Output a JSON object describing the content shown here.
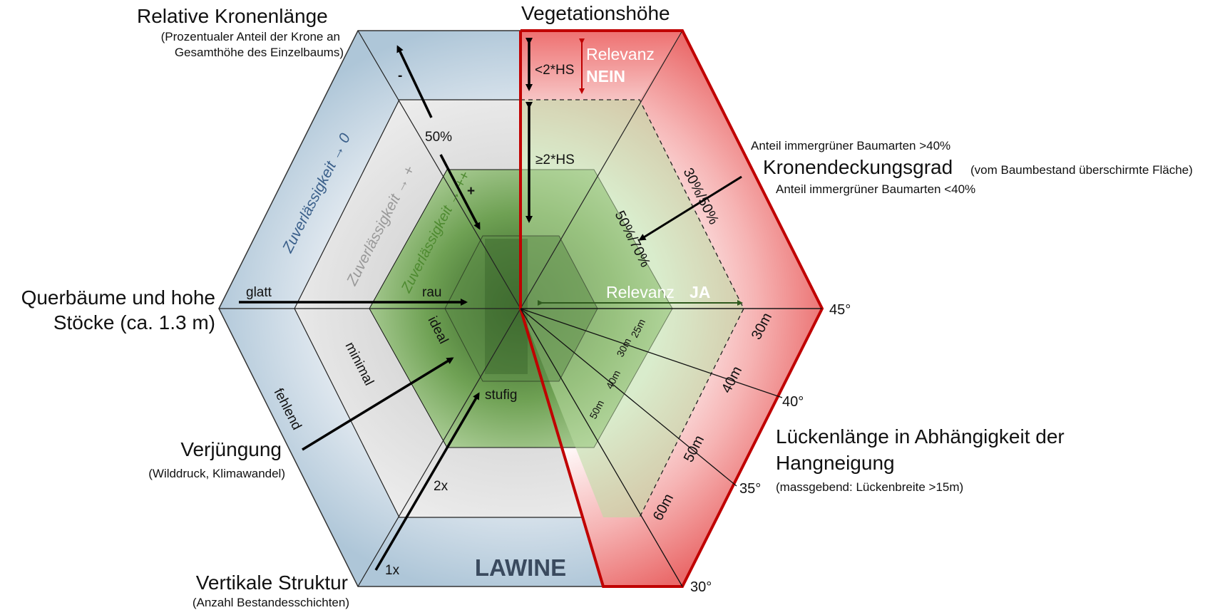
{
  "axes": {
    "crown": {
      "title": "Relative Kronenlänge",
      "sub1": "(Prozentualer Anteil der Krone an",
      "sub2": "Gesamthöhe des Einzelbaums)",
      "minus": "-",
      "plus": "+",
      "pct": "50%"
    },
    "height": {
      "title": "Vegetationshöhe",
      "lt": "<2*HS",
      "ge": "≥2*HS"
    },
    "cover": {
      "title": "Kronendeckungsgrad",
      "sub": "(vom Baumbestand überschirmte Fläche)",
      "ever_gt": "Anteil immergrüner Baumarten >40%",
      "ever_lt": "Anteil immergrüner Baumarten <40%",
      "range_outer": "30%/50%",
      "range_inner": "50%/70%"
    },
    "logs": {
      "title1": "Querbäume und hohe",
      "title2": "Stöcke (ca. 1.3 m)",
      "smooth": "glatt",
      "rough": "rau"
    },
    "regen": {
      "title": "Verjüngung",
      "sub": "(Wilddruck, Klimawandel)",
      "missing": "fehlend",
      "minimal": "minimal",
      "ideal": "ideal"
    },
    "vert": {
      "title": "Vertikale Struktur",
      "sub": "(Anzahl Bestandesschichten)",
      "x1": "1x",
      "x2": "2x",
      "staged": "stufig"
    },
    "gap": {
      "title1": "Lückenlänge in Abhängigkeit der",
      "title2": "Hangneigung",
      "sub": "(massgebend: Lückenbreite >15m)"
    }
  },
  "slopes": [
    "45°",
    "40°",
    "35°",
    "30°"
  ],
  "gap_lengths": {
    "r45": [
      "25m",
      "30m"
    ],
    "r40": [
      "30m",
      "40m"
    ],
    "r35": [
      "40m",
      "50m"
    ],
    "r30": [
      "50m",
      "60m"
    ]
  },
  "reliability": {
    "outer": "Zuverlässigkeit → 0",
    "middle": "Zuverlässigkeit → +",
    "inner": "Zuverlässigkeit → ++"
  },
  "relevance": {
    "no_label": "Relevanz",
    "no_value": "NEIN",
    "yes_label": "Relevanz",
    "yes_value": "JA"
  },
  "footer": {
    "title": "LAWINE"
  },
  "colors": {
    "red": "#c00000",
    "steelblue": "#3a5f8a",
    "green": "#5a9a3c",
    "darkgreen": "#2f5a1e"
  }
}
